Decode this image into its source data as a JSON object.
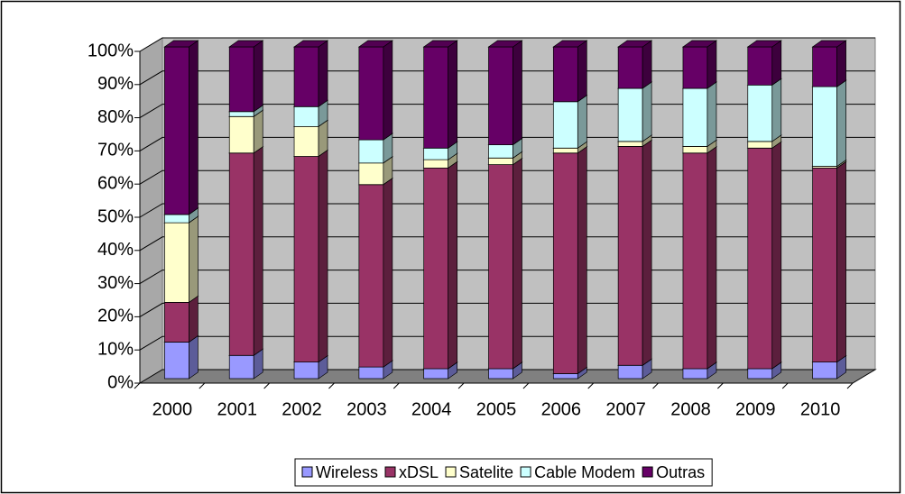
{
  "chart_data": {
    "type": "bar",
    "stacked": true,
    "three_d": true,
    "categories": [
      "2000",
      "2001",
      "2002",
      "2003",
      "2004",
      "2005",
      "2006",
      "2007",
      "2008",
      "2009",
      "2010"
    ],
    "series": [
      {
        "name": "Wireless",
        "color": "#9999ff",
        "values": [
          11,
          7,
          5,
          3.5,
          3,
          3,
          1.5,
          4,
          3,
          3,
          5
        ]
      },
      {
        "name": "xDSL",
        "color": "#993366",
        "values": [
          12,
          61,
          62,
          55,
          60.5,
          61.5,
          66.5,
          66,
          65,
          66.5,
          58.5
        ]
      },
      {
        "name": "Satelite",
        "color": "#ffffcc",
        "values": [
          24,
          11,
          9,
          6.5,
          2.5,
          2,
          1.5,
          1.5,
          2,
          2,
          0.5
        ]
      },
      {
        "name": "Cable Modem",
        "color": "#ccffff",
        "values": [
          2.5,
          1.5,
          6,
          7,
          3.5,
          4,
          14,
          16,
          17.5,
          17,
          24
        ]
      },
      {
        "name": "Outras",
        "color": "#660066",
        "values": [
          50.5,
          19.5,
          18,
          28,
          30.5,
          29.5,
          16.5,
          12.5,
          12.5,
          11.5,
          12
        ]
      }
    ],
    "ylim": [
      0,
      100
    ],
    "yticks": [
      {
        "value": 0,
        "label": "0%"
      },
      {
        "value": 10,
        "label": "10%"
      },
      {
        "value": 20,
        "label": "20%"
      },
      {
        "value": 30,
        "label": "30%"
      },
      {
        "value": 40,
        "label": "40%"
      },
      {
        "value": 50,
        "label": "50%"
      },
      {
        "value": 60,
        "label": "60%"
      },
      {
        "value": 70,
        "label": "70%"
      },
      {
        "value": 80,
        "label": "80%"
      },
      {
        "value": 90,
        "label": "90%"
      },
      {
        "value": 100,
        "label": "100%"
      }
    ],
    "grid": true,
    "legend": "bottom"
  }
}
